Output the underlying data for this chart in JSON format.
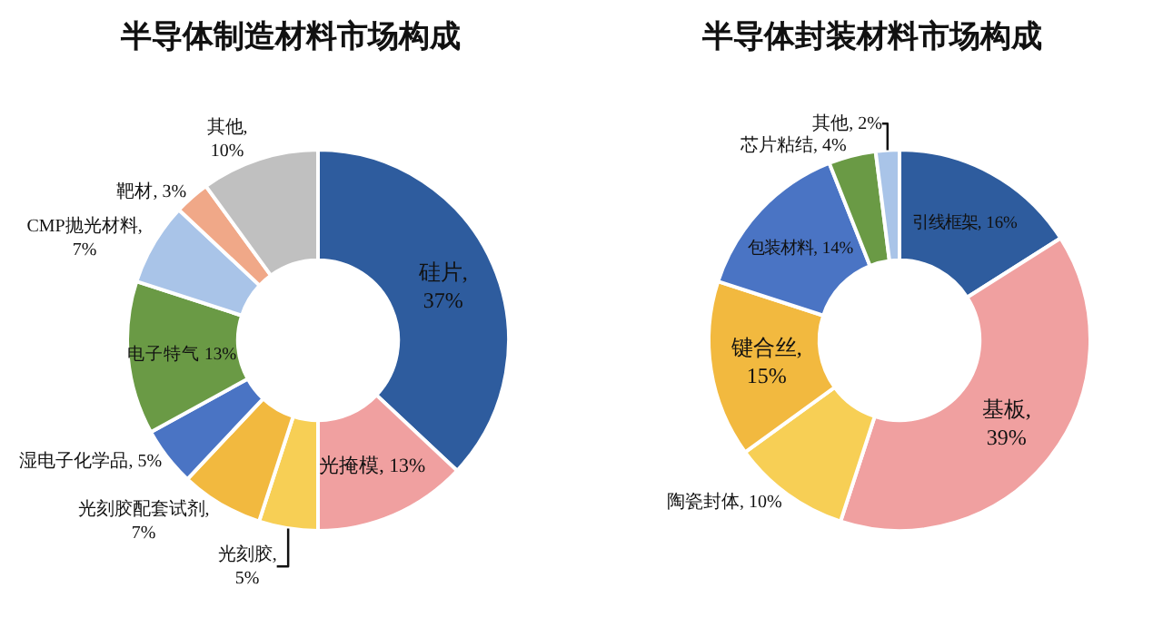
{
  "chart_data": [
    {
      "type": "donut",
      "title": "半导体制造材料市场构成",
      "categories": [
        "硅片",
        "光掩模",
        "光刻胶",
        "光刻胶配套试剂",
        "湿电子化学品",
        "电子特气",
        "CMP抛光材料",
        "靶材",
        "其他"
      ],
      "values": [
        37,
        13,
        5,
        7,
        5,
        13,
        7,
        3,
        10
      ],
      "colors": [
        "#2e5c9e",
        "#f0a0a0",
        "#f7cf55",
        "#f2b93f",
        "#4a74c4",
        "#6a9a45",
        "#a9c4e8",
        "#f0a888",
        "#c0c0c0"
      ],
      "value_labels": [
        ",\n37%",
        ", 13%",
        ",\n5%",
        ",\n7%",
        ", 5%",
        " 13%",
        ",\n7%",
        ", 3%",
        ",\n10%"
      ]
    },
    {
      "type": "donut",
      "title": "半导体封装材料市场构成",
      "categories": [
        "引线框架",
        "基板",
        "陶瓷封体",
        "键合丝",
        "包装材料",
        "芯片粘结",
        "其他"
      ],
      "values": [
        16,
        39,
        10,
        15,
        14,
        4,
        2
      ],
      "colors": [
        "#2e5c9e",
        "#f0a0a0",
        "#f7cf55",
        "#f2b93f",
        "#4a74c4",
        "#6a9a45",
        "#a9c4e8"
      ],
      "value_labels": [
        ", 16%",
        ",\n39%",
        ", 10%",
        ",\n15%",
        ", 14%",
        ", 4%",
        ", 2%"
      ]
    }
  ]
}
